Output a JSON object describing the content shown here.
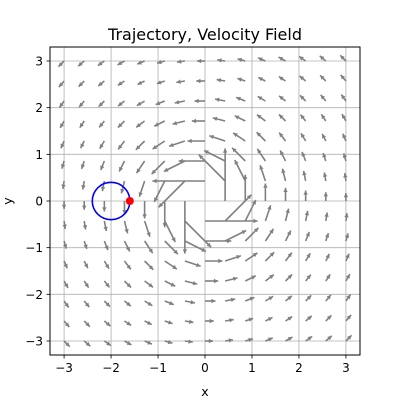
{
  "chart_data": {
    "type": "vector_field",
    "title": "Trajectory, Velocity Field",
    "xlabel": "x",
    "ylabel": "y",
    "xlim": [
      -3.3,
      3.3
    ],
    "ylim": [
      -3.3,
      3.3
    ],
    "xticks": [
      -3,
      -2,
      -1,
      0,
      1,
      2,
      3
    ],
    "yticks": [
      -3,
      -2,
      -1,
      0,
      1,
      2,
      3
    ],
    "xtick_labels": [
      "−3",
      "−2",
      "−1",
      "0",
      "1",
      "2",
      "3"
    ],
    "ytick_labels": [
      "−3",
      "−2",
      "−1",
      "0",
      "1",
      "2",
      "3"
    ],
    "grid": true,
    "field": {
      "description": "point vortex (counter-clockwise) sampled on a 15x15 grid from -3 to 3",
      "grid_start": -3,
      "grid_end": 3,
      "grid_count": 15,
      "arrow_color": "#808080"
    },
    "circle": {
      "center": [
        -2,
        0
      ],
      "radius": 0.4,
      "color": "#0000ff"
    },
    "point": {
      "x": -1.6,
      "y": 0.0,
      "color": "#ff0000"
    }
  }
}
